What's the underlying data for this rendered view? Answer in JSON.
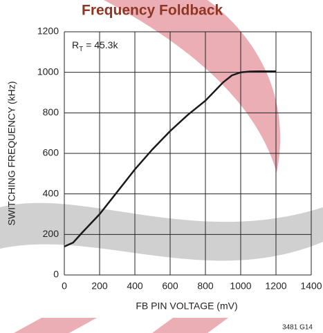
{
  "chart_data": {
    "type": "line",
    "title": "Frequency Foldback",
    "x_label": "FB PIN VOLTAGE (mV)",
    "y_label": "SWITCHING FREQUENCY (kHz)",
    "annotation": [
      "R",
      "T",
      " = 45.3k"
    ],
    "figure_id": "3481 G14",
    "x": [
      0,
      50,
      100,
      200,
      300,
      400,
      500,
      600,
      700,
      800,
      900,
      950,
      1000,
      1050,
      1100,
      1200
    ],
    "series": [
      {
        "color": "#1a1a1a",
        "values": [
          140,
          160,
          208,
          300,
          410,
          521,
          620,
          710,
          790,
          860,
          950,
          985,
          1000,
          1004,
          1005,
          1005
        ]
      }
    ],
    "xlim": [
      0,
      1400
    ],
    "xticks": [
      0,
      200,
      400,
      600,
      800,
      1000,
      1200,
      1400
    ],
    "ylim": [
      0,
      1200
    ],
    "yticks": [
      0,
      200,
      400,
      600,
      800,
      1000,
      1200
    ],
    "grid": true
  }
}
